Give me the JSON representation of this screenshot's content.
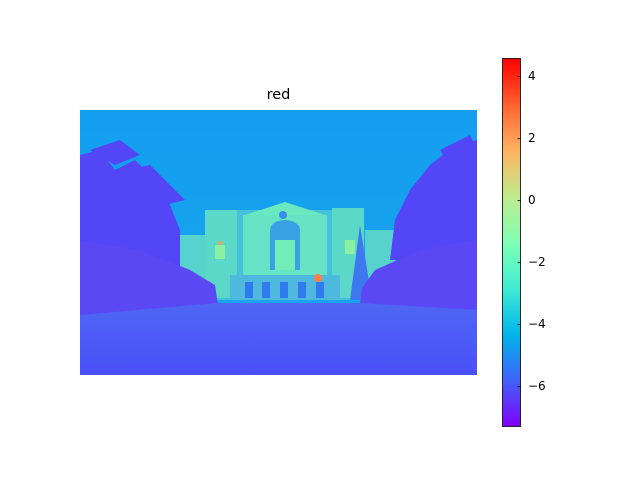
{
  "title": "red",
  "colormap": "rainbow",
  "colorbar": {
    "ticks": [
      {
        "value": 4,
        "label": "4"
      },
      {
        "value": 2,
        "label": "2"
      },
      {
        "value": 0,
        "label": "0"
      },
      {
        "value": -2,
        "label": "−2"
      },
      {
        "value": -4,
        "label": "−4"
      },
      {
        "value": -6,
        "label": "−6"
      }
    ],
    "min": -7.3,
    "max": 4.6
  },
  "colors": {
    "background": "#ffffff",
    "sky": "#149ef0",
    "dark_foliage": "#5050f8",
    "building": "#5ee0c8",
    "lawn": "#4a58f6",
    "highlight": "#ff8040"
  }
}
